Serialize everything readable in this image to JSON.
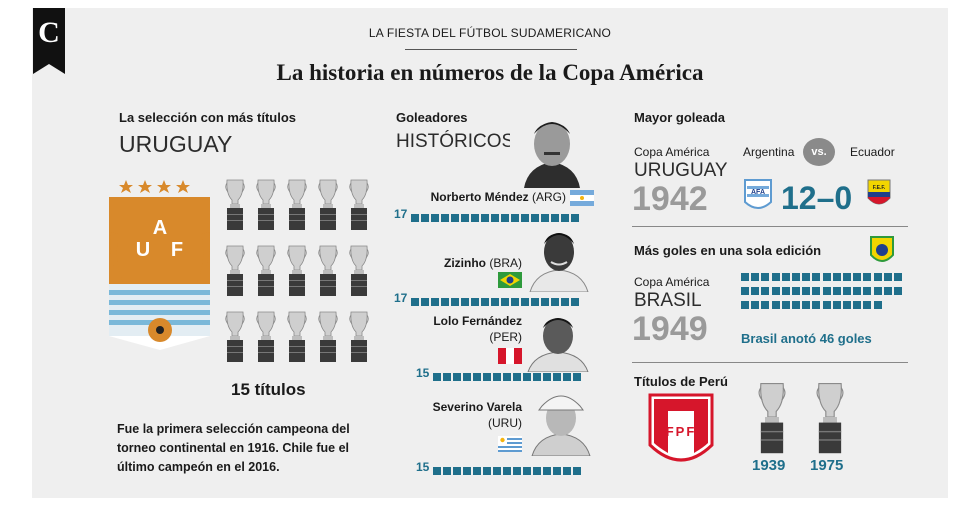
{
  "brand_letter": "C",
  "kicker": "LA FIESTA DEL FÚTBOL SUDAMERICANO",
  "headline": "La historia en números de la Copa América",
  "most_titles": {
    "label": "La selección con más títulos",
    "team": "URUGUAY",
    "badge_text": "AUF",
    "count_label": "15 títulos",
    "trophies": 15,
    "note": "Fue la primera selección campeona del torneo continental en 1916. Chile fue el último campeón en el 2016."
  },
  "scorers": {
    "title_1": "Goleadores",
    "title_2": "HISTÓRICOS",
    "players": [
      {
        "name": "Norberto Méndez",
        "country": "(ARG)",
        "goals": "17",
        "goals_value": 17
      },
      {
        "name": "Zizinho",
        "country": "(BRA)",
        "goals": "17",
        "goals_value": 17
      },
      {
        "name": "Lolo Fernández",
        "country": "(PER)",
        "goals": "15",
        "goals_value": 15
      },
      {
        "name": "Severino Varela",
        "country": "(URU)",
        "goals": "15",
        "goals_value": 15
      }
    ]
  },
  "biggest_win": {
    "title": "Mayor goleada",
    "competition": "Copa América",
    "host": "URUGUAY",
    "year": "1942",
    "team_a": "Argentina",
    "vs": "vs.",
    "team_b": "Ecuador",
    "score": "12–0",
    "badge_a": "AFA",
    "badge_b": "F.E.F."
  },
  "most_goals": {
    "title": "Más goles en una sola edición",
    "competition": "Copa América",
    "host": "BRASIL",
    "year": "1949",
    "goals": 46,
    "note": "Brasil anotó 46 goles"
  },
  "peru": {
    "title": "Títulos de Perú",
    "badge_text": "FPF",
    "years": [
      "1939",
      "1975"
    ]
  },
  "colors": {
    "accent": "#1f6f8b",
    "auf_orange": "#d8892b",
    "uruguay_blue": "#7ab8d9",
    "peru_red": "#d6162b",
    "brazil_green": "#2e9a3c",
    "brazil_yellow": "#f2d500"
  }
}
